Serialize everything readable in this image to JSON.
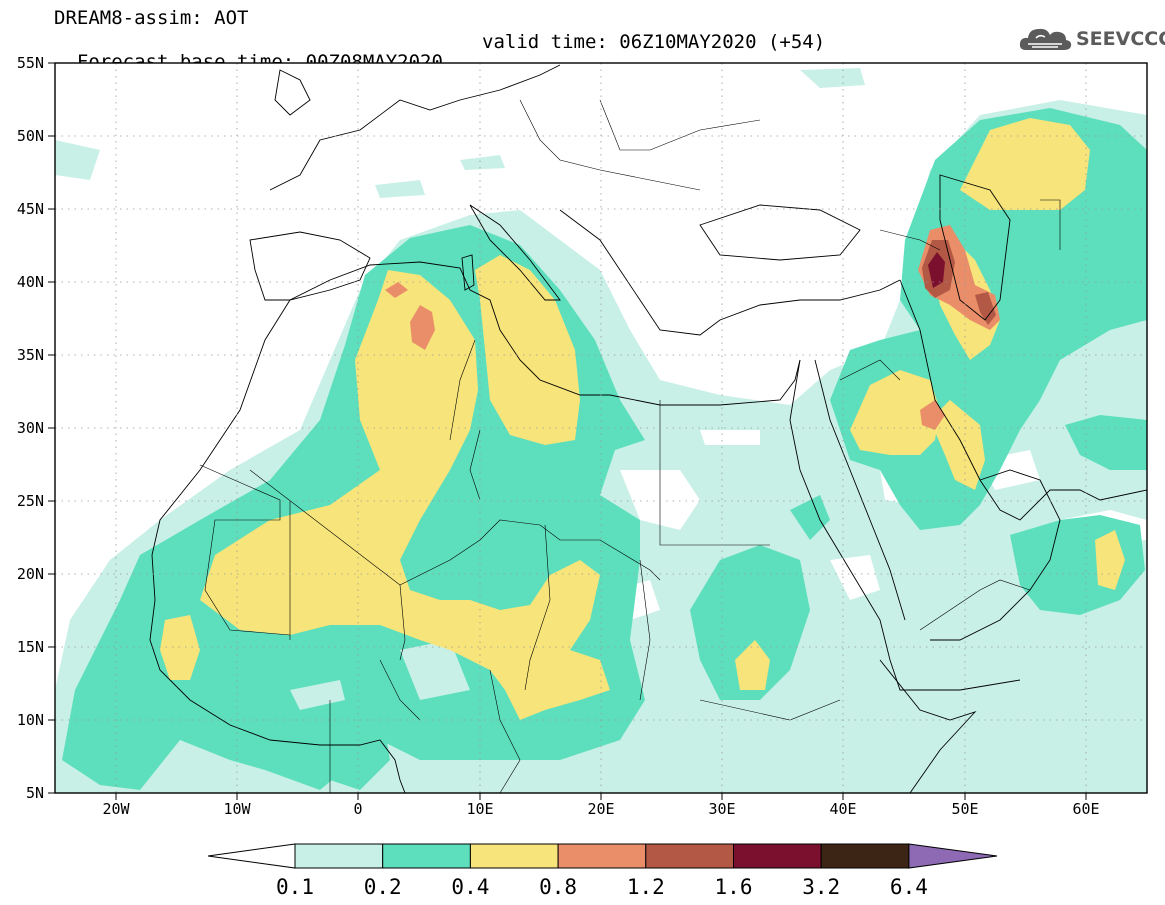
{
  "header": {
    "line1": "DREAM8-assim: AOT",
    "line2_base": "Forecast base time: 00Z08MAY2020",
    "line2_valid": "valid time: 06Z10MAY2020 (+54)"
  },
  "logo": {
    "text": "SEEVCCC",
    "icon": "cloud-icon"
  },
  "map": {
    "lon_range": [
      -25,
      65
    ],
    "lat_range": [
      5,
      55
    ],
    "grid": "dotted",
    "lat_labels": [
      "55N",
      "50N",
      "45N",
      "40N",
      "35N",
      "30N",
      "25N",
      "20N",
      "15N",
      "10N",
      "5N"
    ],
    "lon_labels": [
      "20W",
      "10W",
      "0",
      "10E",
      "20E",
      "30E",
      "40E",
      "50E",
      "60E"
    ]
  },
  "colorbar": {
    "labels": [
      "0.1",
      "0.2",
      "0.4",
      "0.8",
      "1.2",
      "1.6",
      "3.2",
      "6.4"
    ],
    "colors": [
      "#ffffff",
      "#c8f0e6",
      "#5ddfbe",
      "#f7e47a",
      "#e98e68",
      "#b35845",
      "#7a0f2e",
      "#3c2514",
      "#8e6ab4"
    ]
  },
  "legend_colors": {
    "c01": "#c8f0e6",
    "c02": "#5ddfbe",
    "c04": "#f7e47a",
    "c08": "#e98e68",
    "c12": "#b35845",
    "c16": "#7a0f2e"
  }
}
